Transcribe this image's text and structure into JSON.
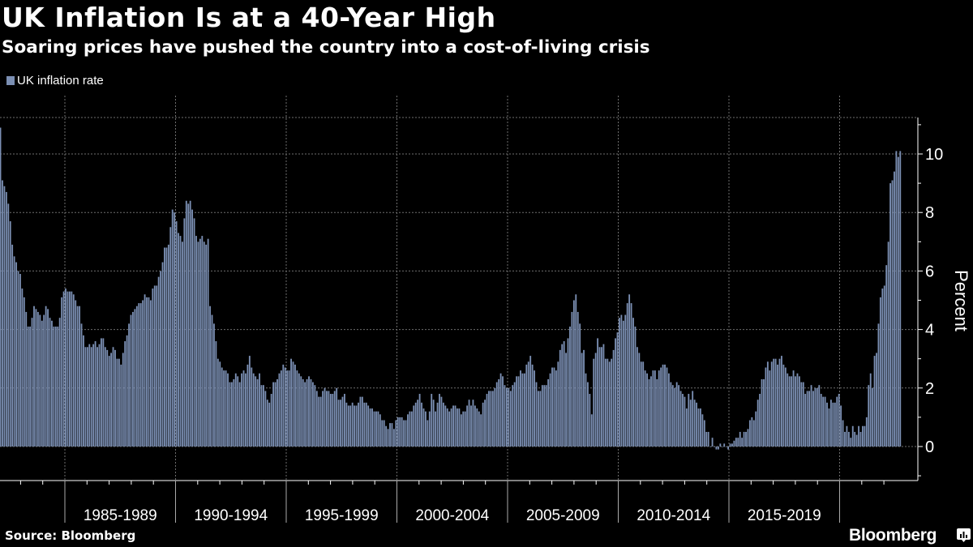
{
  "header": {
    "title": "UK Inflation Is at a 40-Year High",
    "subtitle": "Soaring prices have pushed the country into a cost-of-living crisis"
  },
  "footer": {
    "source": "Source: Bloomberg",
    "brand": "Bloomberg",
    "brand_icon": "bloomberg-chart-icon"
  },
  "colors": {
    "background": "#000000",
    "bar": "#7b8fb3",
    "grid": "#6e6e6e",
    "axis": "#ffffff"
  },
  "chart_data": {
    "type": "bar",
    "title": "UK Inflation Is at a 40-Year High",
    "subtitle": "Soaring prices have pushed the country into a cost-of-living crisis",
    "legend": {
      "entries": [
        "UK inflation rate"
      ],
      "placement": "top-left"
    },
    "xlabel": "",
    "ylabel": "Percent",
    "y_axis_side": "right",
    "ylim": [
      -1.2,
      11.5
    ],
    "yticks": [
      0,
      2,
      4,
      6,
      8,
      10
    ],
    "grid": true,
    "frequency": "monthly",
    "start": "1982-02",
    "end": "2022-10",
    "x_period_labels": [
      "1985-1989",
      "1990-1994",
      "1995-1999",
      "2000-2004",
      "2005-2009",
      "2010-2014",
      "2015-2019"
    ],
    "x_period_boundaries": [
      1985,
      1990,
      1995,
      2000,
      2005,
      2010,
      2015,
      2020
    ],
    "series": [
      {
        "name": "UK inflation rate",
        "monthly_values_by_year": {
          "1982": [
            10.9,
            9.1,
            8.9,
            8.7,
            8.3,
            7.7,
            6.9,
            6.5,
            6.3,
            6.0,
            5.9,
            5.4
          ],
          "1983": [
            5.1,
            4.6,
            4.1,
            4.1,
            4.4,
            4.8,
            4.7,
            4.6,
            4.5,
            4.3,
            4.5,
            4.8
          ],
          "1984": [
            4.7,
            4.4,
            4.3,
            4.1,
            4.1,
            4.1,
            4.4,
            5.1,
            5.3,
            5.4,
            5.3,
            5.3
          ],
          "1985": [
            5.3,
            5.2,
            5.0,
            4.8,
            4.8,
            4.2,
            3.8,
            3.4,
            3.4,
            3.5,
            3.4,
            3.5
          ],
          "1986": [
            3.6,
            3.4,
            3.5,
            3.7,
            3.7,
            3.4,
            3.3,
            3.1,
            3.2,
            3.4,
            3.3,
            3.0
          ],
          "1987": [
            3.0,
            2.8,
            3.2,
            3.6,
            3.8,
            4.2,
            4.5,
            4.6,
            4.7,
            4.8,
            4.9,
            4.9
          ],
          "1988": [
            5.0,
            5.2,
            5.1,
            5.1,
            5.0,
            5.4,
            5.5,
            5.5,
            5.8,
            6.0,
            6.3,
            6.8
          ],
          "1989": [
            6.8,
            6.9,
            7.5,
            8.1,
            8.0,
            7.7,
            7.3,
            7.2,
            7.0,
            7.8,
            8.4,
            8.3
          ],
          "1990": [
            8.4,
            8.1,
            7.8,
            7.2,
            7.0,
            7.1,
            7.2,
            7.0,
            6.9,
            7.1,
            4.8,
            4.5
          ],
          "1991": [
            4.2,
            3.6,
            3.0,
            2.9,
            2.7,
            2.6,
            2.6,
            2.5,
            2.2,
            2.2,
            2.3,
            2.5
          ],
          "1992": [
            2.4,
            2.2,
            2.5,
            2.6,
            2.5,
            2.8,
            3.1,
            2.7,
            2.5,
            2.4,
            2.3,
            2.5
          ],
          "1993": [
            2.1,
            2.1,
            1.9,
            1.6,
            1.5,
            1.8,
            2.2,
            2.2,
            2.3,
            2.5,
            2.6,
            2.8
          ],
          "1994": [
            2.7,
            2.6,
            2.6,
            3.0,
            2.9,
            2.8,
            2.6,
            2.5,
            2.4,
            2.3,
            2.2,
            2.3
          ],
          "1995": [
            2.4,
            2.3,
            2.2,
            2.1,
            1.9,
            1.7,
            1.7,
            1.9,
            2.0,
            1.9,
            1.9,
            1.8
          ],
          "1996": [
            1.8,
            1.9,
            2.0,
            1.6,
            1.6,
            1.7,
            1.8,
            1.5,
            1.4,
            1.4,
            1.5,
            1.4
          ],
          "1997": [
            1.4,
            1.5,
            1.7,
            1.7,
            1.5,
            1.5,
            1.4,
            1.3,
            1.3,
            1.2,
            1.2,
            1.2
          ],
          "1998": [
            1.1,
            0.9,
            0.9,
            0.7,
            0.6,
            0.8,
            0.8,
            0.6,
            0.9,
            1.0,
            1.0,
            1.0
          ],
          "1999": [
            0.9,
            0.9,
            1.1,
            1.2,
            1.2,
            1.4,
            1.5,
            1.6,
            1.8,
            1.5,
            1.3,
            1.2
          ],
          "2000": [
            0.9,
            1.2,
            1.8,
            1.6,
            1.2,
            1.5,
            1.8,
            1.7,
            1.5,
            1.4,
            1.3,
            1.2
          ],
          "2001": [
            1.3,
            1.4,
            1.4,
            1.3,
            1.3,
            1.1,
            1.2,
            1.2,
            1.4,
            1.6,
            1.4,
            1.6
          ],
          "2002": [
            1.4,
            1.3,
            1.2,
            1.1,
            1.5,
            1.6,
            1.8,
            1.9,
            1.9,
            1.9,
            2.0,
            2.2
          ],
          "2003": [
            2.3,
            2.5,
            2.4,
            2.1,
            2.0,
            2.0,
            1.9,
            2.1,
            2.2,
            2.4,
            2.4,
            2.6
          ],
          "2004": [
            2.5,
            2.5,
            2.8,
            2.9,
            3.1,
            2.8,
            2.6,
            2.2,
            1.9,
            1.9,
            2.1,
            2.1
          ],
          "2005": [
            2.1,
            2.3,
            2.5,
            2.7,
            2.7,
            2.6,
            2.9,
            3.3,
            3.5,
            3.6,
            3.2,
            3.7
          ],
          "2006": [
            4.1,
            4.6,
            5.0,
            5.2,
            4.6,
            4.2,
            3.2,
            3.3,
            2.5,
            2.2,
            1.8,
            1.1
          ],
          "2007": [
            3.0,
            3.2,
            3.7,
            3.4,
            3.4,
            3.5,
            3.0,
            3.0,
            2.9,
            3.0,
            3.3,
            3.7
          ],
          "2008": [
            3.9,
            4.4,
            4.5,
            4.3,
            4.5,
            4.9,
            5.2,
            4.9,
            4.4,
            4.1,
            3.4,
            3.2
          ],
          "2009": [
            2.9,
            2.9,
            2.6,
            2.5,
            2.3,
            2.4,
            2.6,
            2.6,
            2.3,
            2.6,
            2.7,
            2.8
          ],
          "2010": [
            2.8,
            2.7,
            2.5,
            2.2,
            2.1,
            2.0,
            2.2,
            2.1,
            1.9,
            1.8,
            1.7,
            1.3
          ],
          "2011": [
            1.8,
            1.6,
            1.9,
            1.6,
            1.5,
            1.3,
            1.3,
            1.1,
            0.9,
            0.5,
            0.5,
            0.0
          ],
          "2012": [
            0.3,
            0.0,
            -0.1,
            -0.1,
            0.1,
            0.0,
            0.1,
            0.0,
            -0.1,
            0.1,
            0.1,
            0.2
          ],
          "2013": [
            0.3,
            0.3,
            0.5,
            0.3,
            0.5,
            0.5,
            0.6,
            0.9,
            1.0,
            0.9,
            1.2,
            1.6
          ],
          "2014": [
            1.8,
            2.3,
            2.3,
            2.7,
            2.9,
            2.6,
            2.9,
            3.0,
            3.0,
            2.8,
            3.0,
            3.1
          ],
          "2015": [
            2.8,
            2.7,
            2.5,
            2.4,
            2.4,
            2.6,
            2.4,
            2.5,
            2.4,
            2.2,
            2.2,
            1.8
          ],
          "2016": [
            1.9,
            1.9,
            2.1,
            1.9,
            2.0,
            2.0,
            2.1,
            1.8,
            1.7,
            1.7,
            1.5,
            1.3
          ],
          "2017": [
            1.6,
            1.5,
            1.5,
            1.7,
            1.8,
            1.4,
            0.9,
            0.5,
            0.7,
            0.5,
            0.3,
            0.7
          ],
          "2018": [
            0.5,
            0.4,
            0.7,
            0.5,
            0.7,
            0.7,
            1.0,
            2.1,
            2.5,
            2.0,
            3.1,
            3.2
          ],
          "2019": [
            4.2,
            5.1,
            5.4,
            5.5,
            6.2,
            7.0,
            9.0,
            9.1,
            9.4,
            10.1,
            9.9,
            10.1
          ]
        }
      }
    ]
  }
}
